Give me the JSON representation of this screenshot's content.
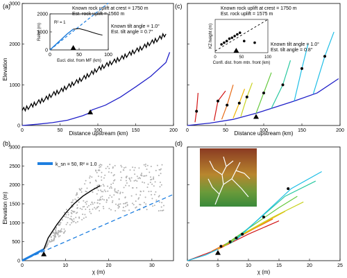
{
  "colors": {
    "black_profile": "#000000",
    "blue_profile": "#1f1fc8",
    "dash_fit": "#1e7fe0",
    "scatter_gray": "#b0b0b0",
    "legend_blue": "#1e7fe0",
    "hot": [
      "#d21414",
      "#e86a14",
      "#f0b400",
      "#c8d21e",
      "#64c83c",
      "#28c8a0",
      "#1ebee6"
    ]
  },
  "chart_data": [
    {
      "panel": "(a)",
      "type": "line",
      "xlabel": "Distance upstream (km)",
      "ylabel": "Elevation",
      "xlim": [
        0,
        200
      ],
      "ylim": [
        0,
        3000
      ],
      "xticks": [
        0,
        50,
        100,
        150,
        200
      ],
      "yticks": [
        0,
        1000,
        2000,
        3000
      ],
      "series": [
        {
          "style": "black",
          "x": [
            0,
            10,
            20,
            30,
            40,
            50,
            60,
            70,
            80,
            90,
            100,
            110,
            120,
            130,
            140,
            150,
            160,
            170,
            180,
            190
          ],
          "y": [
            370,
            460,
            560,
            640,
            760,
            840,
            950,
            1050,
            1150,
            1260,
            1380,
            1470,
            1560,
            1640,
            1740,
            1830,
            1920,
            2030,
            2120,
            2250
          ]
        },
        {
          "style": "blue",
          "x": [
            0,
            20,
            40,
            60,
            80,
            88,
            92,
            110,
            130,
            150,
            170,
            190,
            195
          ],
          "y": [
            0,
            30,
            70,
            130,
            240,
            300,
            380,
            500,
            700,
            950,
            1210,
            1550,
            1800
          ]
        }
      ],
      "marker": {
        "x": 90,
        "y": 310
      },
      "annotations": [
        "Known rock uplift at crest = 1750 m",
        "Est. rock uplift = 1560 m",
        "Known tilt angle = 1.0°",
        "Est. tilt angle = 0.7°"
      ],
      "inset": {
        "xlabel": "Eucl. dist. from MF (km)",
        "ylabel": "Relief (m)",
        "xlim": [
          0,
          100
        ],
        "ylim": [
          0,
          2000
        ],
        "xticks": [
          0,
          50,
          100
        ],
        "yticks": [
          0,
          1000,
          2000
        ],
        "r2_label": "R² = 1",
        "series_x": [
          0,
          10,
          20,
          30,
          40,
          50,
          60,
          70,
          80,
          90
        ],
        "series_y": [
          0,
          300,
          600,
          900,
          1150,
          1180,
          1100,
          1000,
          900,
          820
        ],
        "marker_x": 40
      }
    },
    {
      "panel": "(b)",
      "type": "scatter",
      "xlabel": "χ (m)",
      "ylabel": "Elevation (m)",
      "xlim": [
        0,
        35
      ],
      "ylim": [
        0,
        3000
      ],
      "xticks": [
        0,
        10,
        20,
        30
      ],
      "yticks": [
        0,
        500,
        1000,
        1500,
        2000,
        2500,
        3000
      ],
      "legend": "k_sn = 50, R² = 1.0",
      "fit_line": {
        "x": [
          0,
          35
        ],
        "y": [
          0,
          1750
        ]
      },
      "blue_segment": {
        "x": [
          0,
          5
        ],
        "y": [
          0,
          300
        ]
      },
      "black_trunk": {
        "x": [
          5,
          6,
          8,
          10,
          12,
          14,
          16,
          18
        ],
        "y": [
          300,
          600,
          950,
          1250,
          1500,
          1700,
          1850,
          1980
        ]
      },
      "marker": {
        "x": 5,
        "y": 300
      }
    },
    {
      "panel": "(c)",
      "type": "line",
      "xlabel": "Distance upstream (km)",
      "ylabel": "",
      "xlim": [
        0,
        200
      ],
      "ylim": [
        0,
        3000
      ],
      "xticks": [
        0,
        50,
        100,
        150,
        200
      ],
      "annotations": [
        "Known rock uplift at crest = 1750 m",
        "Est. rock uplift = 1575 m",
        "Known tilt angle = 1.0°",
        "Est. tilt angle = 0.8°"
      ],
      "marker": {
        "x": 90,
        "y": 300
      },
      "inset": {
        "xlabel": "Confl. dist. from mtn. front (km)",
        "ylabel": "KZ height (m)",
        "xlim": [
          0,
          100
        ],
        "xticks": [
          0,
          50,
          100
        ],
        "points_x": [
          12,
          17,
          22,
          27,
          32,
          37,
          42,
          47,
          55,
          75
        ],
        "points_y": [
          0.25,
          0.3,
          0.35,
          0.42,
          0.45,
          0.5,
          0.55,
          0.6,
          0.35,
          0.3
        ],
        "marker_x": 40
      }
    },
    {
      "panel": "(d)",
      "type": "line",
      "xlabel": "χ (m)",
      "ylabel": "",
      "xlim": [
        0,
        25
      ],
      "ylim": [
        0,
        3000
      ],
      "xticks": [
        0,
        5,
        10,
        15,
        20,
        25
      ],
      "marker": {
        "x": 5,
        "y": 300
      }
    }
  ]
}
